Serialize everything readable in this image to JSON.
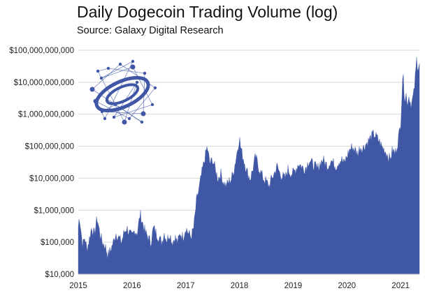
{
  "chart_data": {
    "type": "area",
    "title": "Daily Dogecoin Trading Volume (log)",
    "subtitle": "Source: Galaxy Digital Research",
    "xlabel": "",
    "ylabel": "",
    "yscale": "log",
    "ylim": [
      10000,
      100000000000
    ],
    "xlim": [
      2015.0,
      2021.35
    ],
    "ytick_values": [
      10000,
      100000,
      1000000,
      10000000,
      100000000,
      1000000000,
      10000000000,
      100000000000
    ],
    "ytick_labels": [
      "$10,000",
      "$100,000",
      "$1,000,000",
      "$10,000,000",
      "$100,000,000",
      "$1,000,000,000",
      "$10,000,000,000",
      "$100,000,000,000"
    ],
    "xtick_values": [
      2015,
      2016,
      2017,
      2018,
      2019,
      2020,
      2021
    ],
    "xtick_labels": [
      "2015",
      "2016",
      "2017",
      "2018",
      "2019",
      "2020",
      "2021"
    ],
    "grid": true,
    "color": "#3f57a5",
    "series": [
      {
        "name": "Daily Dogecoin Trading Volume",
        "points": [
          [
            2015.0,
            300000
          ],
          [
            2015.02,
            700000
          ],
          [
            2015.05,
            250000
          ],
          [
            2015.08,
            80000
          ],
          [
            2015.12,
            150000
          ],
          [
            2015.16,
            60000
          ],
          [
            2015.2,
            120000
          ],
          [
            2015.25,
            300000
          ],
          [
            2015.3,
            180000
          ],
          [
            2015.35,
            600000
          ],
          [
            2015.4,
            200000
          ],
          [
            2015.45,
            100000
          ],
          [
            2015.5,
            80000
          ],
          [
            2015.55,
            40000
          ],
          [
            2015.6,
            60000
          ],
          [
            2015.65,
            100000
          ],
          [
            2015.7,
            200000
          ],
          [
            2015.75,
            150000
          ],
          [
            2015.8,
            100000
          ],
          [
            2015.85,
            200000
          ],
          [
            2015.9,
            300000
          ],
          [
            2015.95,
            200000
          ],
          [
            2016.0,
            150000
          ],
          [
            2016.05,
            250000
          ],
          [
            2016.1,
            200000
          ],
          [
            2016.15,
            800000
          ],
          [
            2016.2,
            400000
          ],
          [
            2016.25,
            200000
          ],
          [
            2016.3,
            150000
          ],
          [
            2016.35,
            100000
          ],
          [
            2016.4,
            300000
          ],
          [
            2016.45,
            200000
          ],
          [
            2016.5,
            150000
          ],
          [
            2016.55,
            100000
          ],
          [
            2016.6,
            200000
          ],
          [
            2016.65,
            120000
          ],
          [
            2016.7,
            200000
          ],
          [
            2016.75,
            100000
          ],
          [
            2016.8,
            150000
          ],
          [
            2016.85,
            100000
          ],
          [
            2016.9,
            200000
          ],
          [
            2016.95,
            150000
          ],
          [
            2017.0,
            300000
          ],
          [
            2017.05,
            200000
          ],
          [
            2017.1,
            150000
          ],
          [
            2017.15,
            300000
          ],
          [
            2017.2,
            2000000
          ],
          [
            2017.25,
            5000000
          ],
          [
            2017.3,
            15000000
          ],
          [
            2017.35,
            40000000
          ],
          [
            2017.4,
            100000000
          ],
          [
            2017.42,
            60000000
          ],
          [
            2017.45,
            30000000
          ],
          [
            2017.5,
            40000000
          ],
          [
            2017.55,
            20000000
          ],
          [
            2017.6,
            10000000
          ],
          [
            2017.65,
            15000000
          ],
          [
            2017.7,
            8000000
          ],
          [
            2017.75,
            6000000
          ],
          [
            2017.8,
            8000000
          ],
          [
            2017.85,
            10000000
          ],
          [
            2017.9,
            20000000
          ],
          [
            2017.95,
            60000000
          ],
          [
            2018.0,
            200000000
          ],
          [
            2018.02,
            100000000
          ],
          [
            2018.05,
            60000000
          ],
          [
            2018.1,
            30000000
          ],
          [
            2018.15,
            15000000
          ],
          [
            2018.2,
            10000000
          ],
          [
            2018.25,
            20000000
          ],
          [
            2018.3,
            50000000
          ],
          [
            2018.35,
            25000000
          ],
          [
            2018.4,
            15000000
          ],
          [
            2018.45,
            10000000
          ],
          [
            2018.5,
            8000000
          ],
          [
            2018.55,
            6000000
          ],
          [
            2018.6,
            10000000
          ],
          [
            2018.65,
            15000000
          ],
          [
            2018.7,
            25000000
          ],
          [
            2018.75,
            15000000
          ],
          [
            2018.8,
            12000000
          ],
          [
            2018.85,
            10000000
          ],
          [
            2018.9,
            20000000
          ],
          [
            2018.95,
            15000000
          ],
          [
            2019.0,
            15000000
          ],
          [
            2019.05,
            20000000
          ],
          [
            2019.1,
            30000000
          ],
          [
            2019.15,
            25000000
          ],
          [
            2019.2,
            20000000
          ],
          [
            2019.25,
            25000000
          ],
          [
            2019.3,
            40000000
          ],
          [
            2019.35,
            30000000
          ],
          [
            2019.4,
            25000000
          ],
          [
            2019.45,
            20000000
          ],
          [
            2019.5,
            30000000
          ],
          [
            2019.55,
            40000000
          ],
          [
            2019.6,
            30000000
          ],
          [
            2019.65,
            25000000
          ],
          [
            2019.7,
            40000000
          ],
          [
            2019.75,
            30000000
          ],
          [
            2019.8,
            25000000
          ],
          [
            2019.85,
            35000000
          ],
          [
            2019.9,
            40000000
          ],
          [
            2019.95,
            30000000
          ],
          [
            2020.0,
            50000000
          ],
          [
            2020.05,
            80000000
          ],
          [
            2020.1,
            100000000
          ],
          [
            2020.15,
            80000000
          ],
          [
            2020.2,
            60000000
          ],
          [
            2020.25,
            100000000
          ],
          [
            2020.3,
            90000000
          ],
          [
            2020.35,
            120000000
          ],
          [
            2020.4,
            150000000
          ],
          [
            2020.45,
            200000000
          ],
          [
            2020.5,
            250000000
          ],
          [
            2020.55,
            200000000
          ],
          [
            2020.6,
            150000000
          ],
          [
            2020.65,
            100000000
          ],
          [
            2020.7,
            80000000
          ],
          [
            2020.75,
            60000000
          ],
          [
            2020.8,
            40000000
          ],
          [
            2020.85,
            80000000
          ],
          [
            2020.9,
            60000000
          ],
          [
            2020.95,
            150000000
          ],
          [
            2021.0,
            500000000
          ],
          [
            2021.02,
            3000000000
          ],
          [
            2021.04,
            20000000000
          ],
          [
            2021.06,
            8000000000
          ],
          [
            2021.08,
            3000000000
          ],
          [
            2021.1,
            5000000000
          ],
          [
            2021.12,
            2000000000
          ],
          [
            2021.15,
            4000000000
          ],
          [
            2021.2,
            2000000000
          ],
          [
            2021.25,
            5000000000
          ],
          [
            2021.28,
            20000000000
          ],
          [
            2021.3,
            60000000000
          ],
          [
            2021.32,
            30000000000
          ],
          [
            2021.35,
            40000000000
          ]
        ]
      }
    ]
  }
}
